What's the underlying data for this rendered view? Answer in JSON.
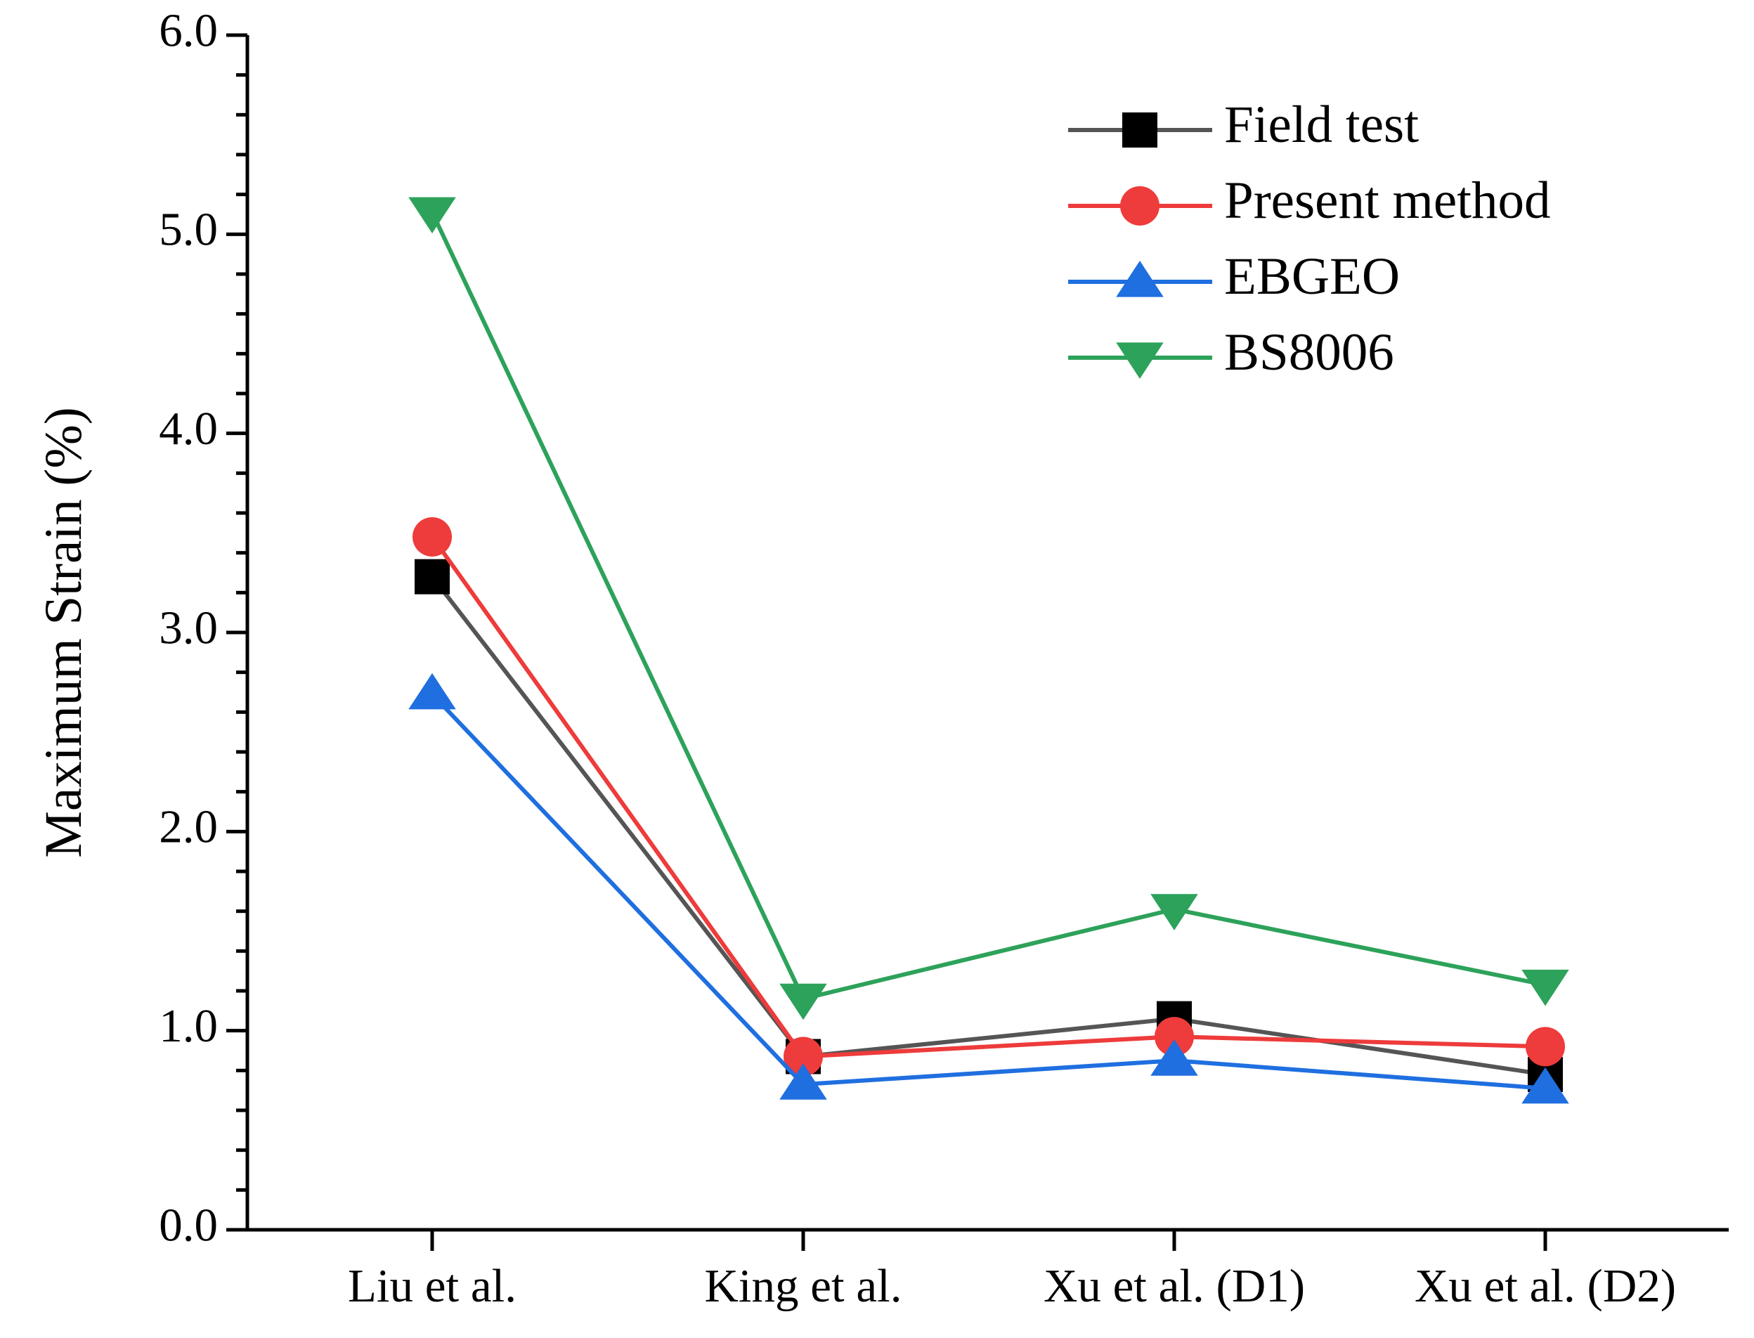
{
  "chart_data": {
    "type": "line",
    "title": "",
    "xlabel": "",
    "ylabel": "Maximum Strain (%)",
    "categories": [
      "Liu et al.",
      "King et al.",
      "Xu et al. (D1)",
      "Xu et al. (D2)"
    ],
    "ylim": [
      0.0,
      6.0
    ],
    "yticks": [
      "0.0",
      "1.0",
      "2.0",
      "3.0",
      "4.0",
      "5.0",
      "6.0"
    ],
    "legend_position": "top-right",
    "grid": false,
    "series": [
      {
        "name": "Field test",
        "marker": "square",
        "color": "#000000",
        "line_color": "#555555",
        "values": [
          3.28,
          0.87,
          1.06,
          0.78
        ]
      },
      {
        "name": "Present method",
        "marker": "circle",
        "color": "#ee3b3b",
        "line_color": "#ee3b3b",
        "values": [
          3.48,
          0.87,
          0.97,
          0.92
        ]
      },
      {
        "name": "EBGEO",
        "marker": "triangle-up",
        "color": "#1f6fe0",
        "line_color": "#1f6fe0",
        "values": [
          2.69,
          0.73,
          0.85,
          0.71
        ]
      },
      {
        "name": "BS8006",
        "marker": "triangle-down",
        "color": "#2da25a",
        "line_color": "#2da25a",
        "values": [
          5.11,
          1.16,
          1.61,
          1.23
        ]
      }
    ]
  }
}
